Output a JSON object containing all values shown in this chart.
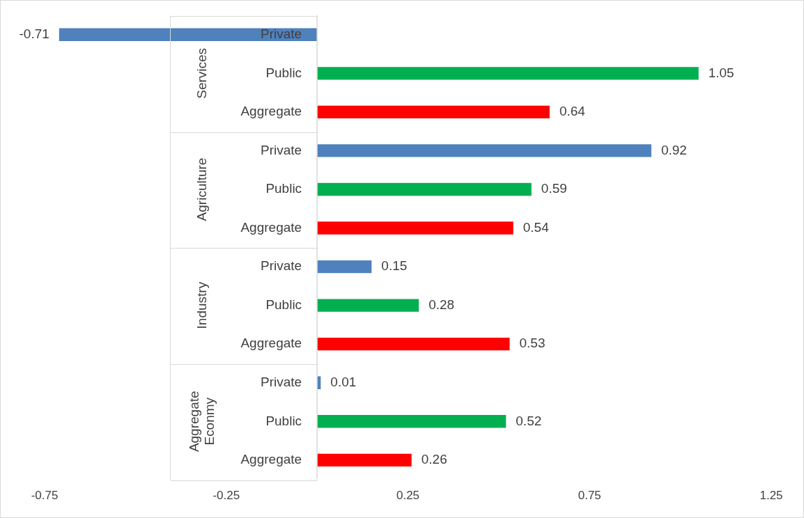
{
  "chart_data": {
    "type": "bar",
    "orientation": "horizontal",
    "categories": [
      "Services",
      "Agriculture",
      "Industry",
      "Aggregate Econmy"
    ],
    "series": [
      {
        "name": "Private",
        "color": "#4f81bd",
        "values": [
          -0.71,
          0.92,
          0.15,
          0.01
        ]
      },
      {
        "name": "Public",
        "color": "#00b050",
        "values": [
          1.05,
          0.59,
          0.28,
          0.52
        ]
      },
      {
        "name": "Aggregate",
        "color": "#ff0000",
        "values": [
          0.64,
          0.54,
          0.53,
          0.26
        ]
      }
    ],
    "xlim": [
      -0.75,
      1.25
    ],
    "xticks": [
      -0.75,
      -0.25,
      0.25,
      0.75,
      1.25
    ],
    "grid": false,
    "legend": false,
    "data_labels": true
  }
}
